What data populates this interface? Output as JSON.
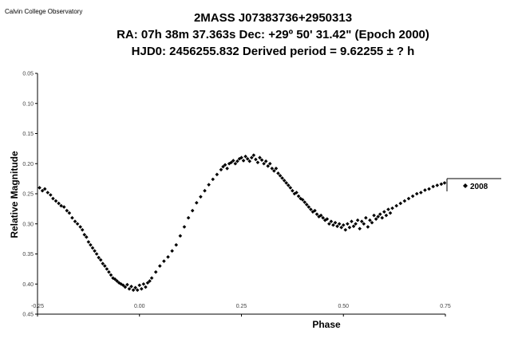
{
  "observatory": "Calvin College Observatory",
  "chart_data": {
    "type": "scatter",
    "title": "2MASS J07383736+2950313",
    "subtitle_line1": "RA: 07h 38m 37.363s    Dec: +29º 50' 31.42\"  (Epoch 2000)",
    "subtitle_line2": "HJD0: 2456255.832      Derived period =  9.62255 ±  ? h",
    "xlabel": "Phase",
    "ylabel": "Relative Magnitude",
    "xlim": [
      -0.25,
      0.75
    ],
    "ylim": [
      0.45,
      0.05
    ],
    "y_inverted": true,
    "grid": false,
    "legend_position": "right",
    "x_ticks": [
      -0.25,
      0.0,
      0.25,
      0.5,
      0.75
    ],
    "x_tick_labels": [
      "-0.25",
      "0.00",
      "0.25",
      "0.50",
      "0.75"
    ],
    "y_ticks": [
      0.05,
      0.1,
      0.15,
      0.2,
      0.25,
      0.3,
      0.35,
      0.4,
      0.45
    ],
    "y_tick_labels": [
      "0.05",
      "0.10",
      "0.15",
      "0.20",
      "0.25",
      "0.30",
      "0.35",
      "0.40",
      "0.45"
    ],
    "series": [
      {
        "name": "2008",
        "color": "#000000",
        "marker": "diamond",
        "x": [
          -0.245,
          -0.238,
          -0.232,
          -0.225,
          -0.218,
          -0.212,
          -0.205,
          -0.198,
          -0.192,
          -0.185,
          -0.178,
          -0.172,
          -0.165,
          -0.158,
          -0.152,
          -0.145,
          -0.14,
          -0.135,
          -0.13,
          -0.125,
          -0.12,
          -0.115,
          -0.11,
          -0.105,
          -0.1,
          -0.095,
          -0.09,
          -0.085,
          -0.08,
          -0.075,
          -0.07,
          -0.065,
          -0.06,
          -0.055,
          -0.05,
          -0.045,
          -0.04,
          -0.035,
          -0.03,
          -0.025,
          -0.02,
          -0.015,
          -0.01,
          -0.005,
          0.0,
          0.005,
          0.01,
          0.015,
          0.02,
          0.025,
          0.03,
          0.04,
          0.05,
          0.06,
          0.07,
          0.08,
          0.09,
          0.1,
          0.11,
          0.12,
          0.13,
          0.14,
          0.15,
          0.16,
          0.17,
          0.18,
          0.19,
          0.2,
          0.205,
          0.21,
          0.215,
          0.22,
          0.225,
          0.23,
          0.235,
          0.24,
          0.245,
          0.25,
          0.255,
          0.26,
          0.265,
          0.27,
          0.275,
          0.28,
          0.285,
          0.29,
          0.295,
          0.3,
          0.305,
          0.31,
          0.315,
          0.32,
          0.325,
          0.33,
          0.335,
          0.34,
          0.345,
          0.35,
          0.355,
          0.36,
          0.365,
          0.37,
          0.375,
          0.38,
          0.385,
          0.39,
          0.395,
          0.4,
          0.405,
          0.41,
          0.415,
          0.42,
          0.425,
          0.43,
          0.435,
          0.44,
          0.445,
          0.45,
          0.455,
          0.46,
          0.465,
          0.47,
          0.475,
          0.48,
          0.485,
          0.49,
          0.495,
          0.5,
          0.505,
          0.51,
          0.515,
          0.52,
          0.525,
          0.53,
          0.535,
          0.54,
          0.545,
          0.55,
          0.555,
          0.56,
          0.565,
          0.57,
          0.575,
          0.58,
          0.585,
          0.59,
          0.595,
          0.6,
          0.605,
          0.61,
          0.615,
          0.62,
          0.63,
          0.64,
          0.65,
          0.66,
          0.67,
          0.68,
          0.69,
          0.7,
          0.71,
          0.72,
          0.73,
          0.74,
          0.748
        ],
        "y": [
          0.24,
          0.245,
          0.242,
          0.248,
          0.252,
          0.258,
          0.262,
          0.266,
          0.27,
          0.272,
          0.278,
          0.282,
          0.29,
          0.296,
          0.3,
          0.305,
          0.31,
          0.318,
          0.322,
          0.33,
          0.335,
          0.34,
          0.345,
          0.35,
          0.356,
          0.36,
          0.366,
          0.37,
          0.375,
          0.38,
          0.385,
          0.39,
          0.392,
          0.395,
          0.398,
          0.4,
          0.402,
          0.405,
          0.401,
          0.408,
          0.404,
          0.41,
          0.406,
          0.41,
          0.402,
          0.408,
          0.4,
          0.405,
          0.398,
          0.395,
          0.39,
          0.38,
          0.37,
          0.362,
          0.355,
          0.345,
          0.335,
          0.32,
          0.305,
          0.29,
          0.278,
          0.265,
          0.255,
          0.245,
          0.235,
          0.226,
          0.218,
          0.21,
          0.205,
          0.202,
          0.208,
          0.2,
          0.198,
          0.195,
          0.2,
          0.196,
          0.192,
          0.19,
          0.195,
          0.188,
          0.192,
          0.196,
          0.19,
          0.186,
          0.193,
          0.198,
          0.19,
          0.194,
          0.2,
          0.196,
          0.204,
          0.2,
          0.208,
          0.212,
          0.208,
          0.216,
          0.22,
          0.224,
          0.228,
          0.232,
          0.236,
          0.24,
          0.245,
          0.25,
          0.248,
          0.254,
          0.258,
          0.26,
          0.264,
          0.268,
          0.272,
          0.276,
          0.28,
          0.278,
          0.284,
          0.288,
          0.286,
          0.29,
          0.294,
          0.292,
          0.3,
          0.296,
          0.302,
          0.298,
          0.304,
          0.3,
          0.306,
          0.302,
          0.31,
          0.3,
          0.306,
          0.296,
          0.304,
          0.3,
          0.294,
          0.308,
          0.296,
          0.3,
          0.29,
          0.305,
          0.294,
          0.298,
          0.286,
          0.292,
          0.288,
          0.284,
          0.29,
          0.28,
          0.286,
          0.276,
          0.282,
          0.274,
          0.27,
          0.266,
          0.262,
          0.258,
          0.254,
          0.25,
          0.248,
          0.244,
          0.242,
          0.238,
          0.236,
          0.234,
          0.232
        ]
      }
    ]
  }
}
